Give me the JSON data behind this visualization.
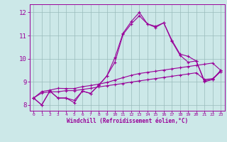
{
  "xlabel": "Windchill (Refroidissement éolien,°C)",
  "x_values": [
    0,
    1,
    2,
    3,
    4,
    5,
    6,
    7,
    8,
    9,
    10,
    11,
    12,
    13,
    14,
    15,
    16,
    17,
    18,
    19,
    20,
    21,
    22,
    23
  ],
  "line1": [
    8.3,
    8.0,
    8.6,
    8.3,
    8.3,
    8.2,
    8.6,
    8.5,
    8.85,
    9.25,
    10.05,
    11.1,
    11.6,
    12.0,
    11.5,
    11.4,
    11.55,
    10.8,
    10.2,
    10.1,
    9.9,
    9.05,
    9.1,
    9.5
  ],
  "line2": [
    8.3,
    8.0,
    8.6,
    8.3,
    8.3,
    8.1,
    8.6,
    8.5,
    8.85,
    9.25,
    9.85,
    11.05,
    11.5,
    11.85,
    11.5,
    11.35,
    11.55,
    10.75,
    10.15,
    9.85,
    9.9,
    9.0,
    9.1,
    9.45
  ],
  "line3": [
    8.3,
    8.58,
    8.64,
    8.72,
    8.71,
    8.71,
    8.79,
    8.84,
    8.9,
    8.97,
    9.08,
    9.18,
    9.28,
    9.36,
    9.41,
    9.46,
    9.51,
    9.56,
    9.61,
    9.66,
    9.71,
    9.76,
    9.81,
    9.5
  ],
  "line4": [
    8.3,
    8.52,
    8.57,
    8.57,
    8.62,
    8.62,
    8.67,
    8.72,
    8.78,
    8.83,
    8.88,
    8.93,
    8.99,
    9.04,
    9.09,
    9.14,
    9.19,
    9.24,
    9.29,
    9.34,
    9.39,
    9.1,
    9.14,
    9.44
  ],
  "line_color": "#990099",
  "bg_color": "#cce8e8",
  "grid_color": "#99bbbb",
  "ylim": [
    7.75,
    12.35
  ],
  "xlim": [
    -0.5,
    23.5
  ],
  "yticks": [
    8,
    9,
    10,
    11,
    12
  ],
  "xticks": [
    0,
    1,
    2,
    3,
    4,
    5,
    6,
    7,
    8,
    9,
    10,
    11,
    12,
    13,
    14,
    15,
    16,
    17,
    18,
    19,
    20,
    21,
    22,
    23
  ]
}
